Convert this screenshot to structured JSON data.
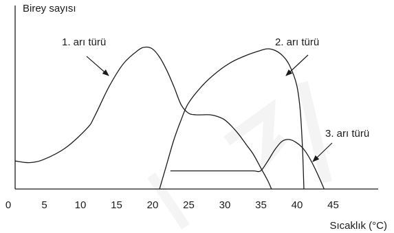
{
  "chart_data": {
    "type": "line",
    "ylabel": "Birey sayısı",
    "xlabel": "Sıcaklık (°C)",
    "x_ticks": [
      0,
      5,
      10,
      15,
      20,
      25,
      30,
      35,
      40,
      45
    ],
    "xlim": [
      0,
      50
    ],
    "ylim": [
      0,
      100
    ],
    "grid": false,
    "series": [
      {
        "name": "1. arı türü",
        "points": [
          [
            0,
            17
          ],
          [
            2,
            16
          ],
          [
            4,
            18
          ],
          [
            7,
            25
          ],
          [
            10,
            37
          ],
          [
            11,
            44
          ],
          [
            13,
            62
          ],
          [
            15,
            76
          ],
          [
            17,
            84
          ],
          [
            18,
            86
          ],
          [
            19,
            85
          ],
          [
            20,
            80
          ],
          [
            21,
            72
          ],
          [
            22,
            62
          ],
          [
            23,
            51
          ],
          [
            24,
            46
          ],
          [
            25,
            45
          ],
          [
            26,
            45
          ],
          [
            27,
            45
          ],
          [
            28,
            44
          ],
          [
            29,
            42
          ],
          [
            30,
            38
          ],
          [
            31,
            33
          ],
          [
            32,
            27
          ],
          [
            33,
            21
          ],
          [
            34,
            13
          ],
          [
            35,
            5
          ],
          [
            35.5,
            0
          ]
        ]
      },
      {
        "name": "2. arı türü",
        "points": [
          [
            20,
            0
          ],
          [
            21,
            15
          ],
          [
            22,
            30
          ],
          [
            23,
            42
          ],
          [
            24,
            52
          ],
          [
            26,
            63
          ],
          [
            28,
            71
          ],
          [
            30,
            77
          ],
          [
            32,
            81
          ],
          [
            34,
            84
          ],
          [
            35,
            85
          ],
          [
            36,
            84
          ],
          [
            37,
            81
          ],
          [
            38,
            75
          ],
          [
            39,
            63
          ],
          [
            39.5,
            47
          ],
          [
            39.8,
            25
          ],
          [
            40,
            0
          ]
        ]
      },
      {
        "name": "3. arı türü",
        "points": [
          [
            21.5,
            11
          ],
          [
            26,
            11
          ],
          [
            31,
            11
          ],
          [
            33,
            11
          ],
          [
            34,
            11
          ],
          [
            35,
            17
          ],
          [
            36,
            24
          ],
          [
            37,
            29
          ],
          [
            38,
            30
          ],
          [
            39,
            28
          ],
          [
            40,
            24
          ],
          [
            41,
            17
          ],
          [
            42,
            8
          ],
          [
            42.8,
            0
          ]
        ]
      }
    ],
    "annotations": [
      {
        "text": "1. arı türü",
        "series": 0
      },
      {
        "text": "2. arı türü",
        "series": 1
      },
      {
        "text": "3. arı türü",
        "series": 2
      }
    ]
  }
}
